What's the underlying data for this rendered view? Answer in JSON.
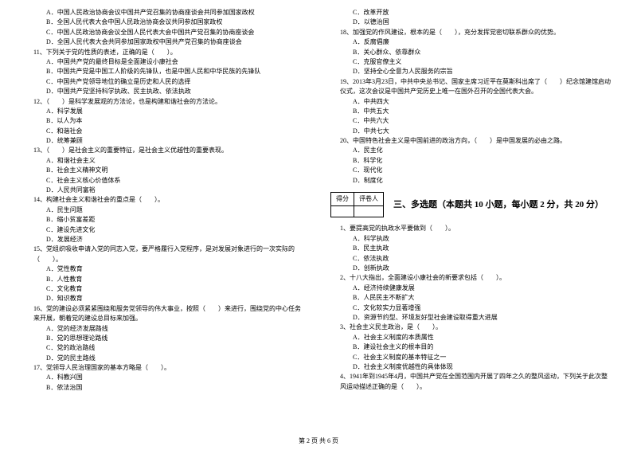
{
  "col1": {
    "q10_options": [
      "A．中国人民政治协商会议中国共产党召集的协商座谈会共同参加国家政权",
      "B．全国人民代表大会中国人民政治协商会议共同参加国家政权",
      "C．中国人民政治协商会议全国人民代表大会中国共产党召集的协商座谈会",
      "D．全国人民代表大会共同参加国家政权中国共产党召集的协商座谈会"
    ],
    "q11": "11、下列关于党的性质的表述，正确的是（　　）。",
    "q11_options": [
      "A．中国共产党的最终目标是全面建设小康社会",
      "B．中国共产党是中国工人阶级的先锋队，也是中国人民和中华民族的先锋队",
      "C．中国共产党领导地位的确立是历史和人民的选择",
      "D．中国共产党坚持科学执政、民主执政、依法执政"
    ],
    "q12": "12、（　　）是科学发展观的方法论，也是构建和谐社会的方法论。",
    "q12_options": [
      "A．科学发展",
      "B．以人为本",
      "C．和谐社会",
      "D．统筹兼顾"
    ],
    "q13": "13、（　　）是社会主义的重要特征，是社会主义优越性的重要表现。",
    "q13_options": [
      "A．和谐社会主义",
      "B．社会主义精神文明",
      "C．社会主义核心价值体系",
      "D．人民共同富裕"
    ],
    "q14": "14、构建社会主义和谐社会的重点是（　　）。",
    "q14_options": [
      "A．民生问题",
      "B．缩小贫富差距",
      "C．建设先进文化",
      "D．发展经济"
    ],
    "q15": "15、党组织吸收申请入党的同志入党，要严格履行入党程序，是对发展对象进行的一次实际的（　　）。",
    "q15_options": [
      "A．党性教育",
      "B．人性教育",
      "C．文化教育",
      "D．知识教育"
    ],
    "q16": "16、党的建设必须紧紧围绕和服务党领导的伟大事业，按照（　　）来进行，围绕党的中心任务来开展，朝着党的建设总目标来加强。",
    "q16_options": [
      "A．党的经济发展路线",
      "B．党的思想理论路线",
      "C．党的政治路线",
      "D．党的民主路线"
    ],
    "q17": "17、党领导人民治理国家的基本方略是（　　）。",
    "q17_options": [
      "A．科教兴国",
      "B．依法治国"
    ]
  },
  "col2": {
    "q17_options_cont": [
      "C．改革开放",
      "D．以德治国"
    ],
    "q18": "18、加强党的作风建设，根本的是（　　），充分发挥党密切联系群众的优势。",
    "q18_options": [
      "A．反腐倡廉",
      "B．关心群众、依靠群众",
      "C．克服官僚主义",
      "D．坚持全心全意为人民服务的宗旨"
    ],
    "q19": "19、2013年3月23日，中共中央总书记、国家主席习近平在莫斯科出席了（　　）纪念馆建馆启动仪式，这次会议是中国共产党历史上唯一在国外召开的全国代表大会。",
    "q19_options": [
      "A．中共四大",
      "B．中共五大",
      "C．中共六大",
      "D．中共七大"
    ],
    "q20": "20、中国特色社会主义是中国前进的政治方向，（　　）是中国发展的必由之路。",
    "q20_options": [
      "A．民主化",
      "B．科学化",
      "C．现代化",
      "D．制度化"
    ],
    "section3": {
      "score_label": "得分",
      "reviewer_label": "评卷人",
      "title": "三、多选题（本题共 10 小题，每小题 2 分，共 20 分）"
    },
    "m1": "1、要提高党的执政水平要做到（　　）。",
    "m1_options": [
      "A．科学执政",
      "B．民主执政",
      "C．依法执政",
      "D．创新执政"
    ],
    "m2": "2、十八大指出，全面建设小康社会的新要求包括（　　）。",
    "m2_options": [
      "A．经济持续健康发展",
      "B．人民民主不断扩大",
      "C．文化软实力显著增强",
      "D．资源节约型、环境友好型社会建设取得重大进展"
    ],
    "m3": "3、社会主义民主政治，是（　　）。",
    "m3_options": [
      "A．社会主义制度的本质属性",
      "B．建设社会主义的根本目的",
      "C．社会主义制度的基本特征之一",
      "D．社会主义制度优越性的具体体现"
    ],
    "m4": "4、1941年到1945年4月，中国共产党在全国范围内开展了四年之久的整风运动，下列关于此次整风运动描述正确的是（　　）。"
  },
  "footer": "第 2 页 共 6 页"
}
